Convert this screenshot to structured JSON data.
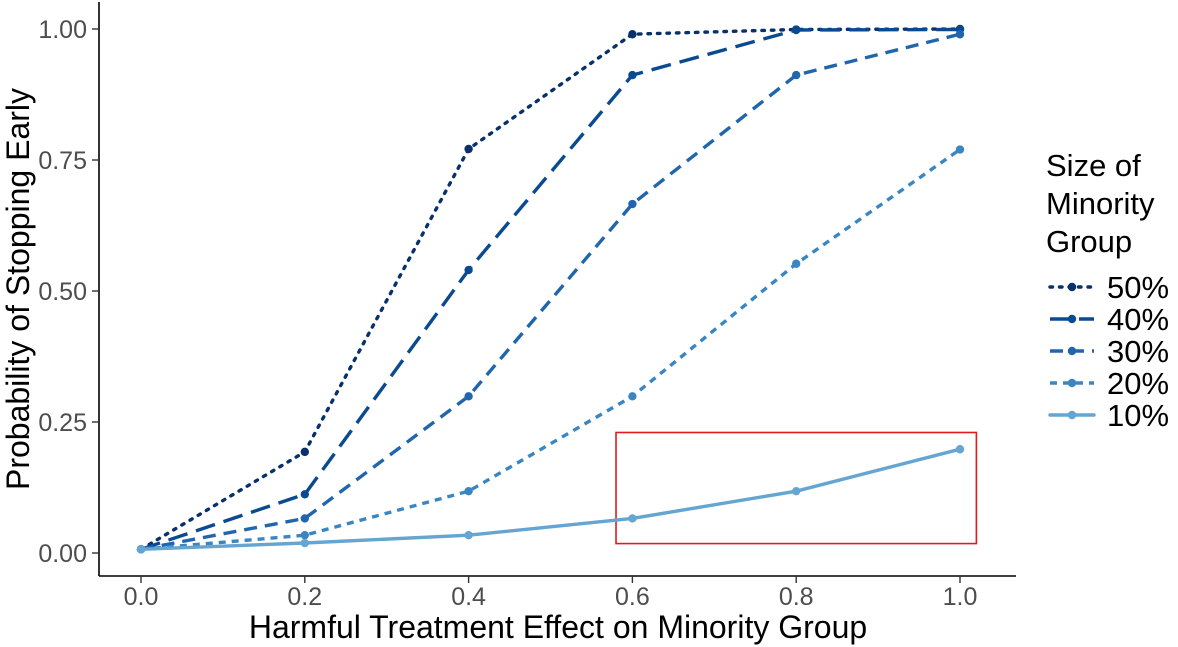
{
  "chart_data": {
    "type": "line",
    "xlabel": "Harmful Treatment Effect on Minority Group",
    "ylabel": "Probability of Stopping Early",
    "xlim": [
      0.0,
      1.0
    ],
    "ylim": [
      0.0,
      1.0
    ],
    "x_ticks": [
      "0.0",
      "0.2",
      "0.4",
      "0.6",
      "0.8",
      "1.0"
    ],
    "y_ticks": [
      "0.00",
      "0.25",
      "0.50",
      "0.75",
      "1.00"
    ],
    "grid": false,
    "legend": {
      "title_lines": [
        "Size of",
        "Minority",
        "Group"
      ],
      "placement": "right"
    },
    "x": [
      0.0,
      0.2,
      0.4,
      0.6,
      0.8,
      1.0
    ],
    "series": [
      {
        "name": "50%",
        "color": "#08306b",
        "dash": "dotted",
        "values": [
          0.007,
          0.193,
          0.771,
          0.99,
          0.999,
          1.0
        ]
      },
      {
        "name": "40%",
        "color": "#0a4a90",
        "dash": "longdash",
        "values": [
          0.007,
          0.112,
          0.54,
          0.912,
          0.998,
          0.999
        ]
      },
      {
        "name": "30%",
        "color": "#2166ac",
        "dash": "dashed",
        "values": [
          0.007,
          0.066,
          0.299,
          0.666,
          0.912,
          0.99
        ]
      },
      {
        "name": "20%",
        "color": "#3a86c3",
        "dash": "shortdash",
        "values": [
          0.007,
          0.034,
          0.118,
          0.299,
          0.552,
          0.77
        ]
      },
      {
        "name": "10%",
        "color": "#64a5d2",
        "dash": "solid",
        "values": [
          0.007,
          0.019,
          0.034,
          0.066,
          0.118,
          0.198
        ]
      }
    ],
    "annotation": {
      "type": "highlight-box",
      "color": "#e31a1c",
      "x_range": [
        0.58,
        1.02
      ],
      "y_range": [
        0.018,
        0.23
      ]
    }
  }
}
